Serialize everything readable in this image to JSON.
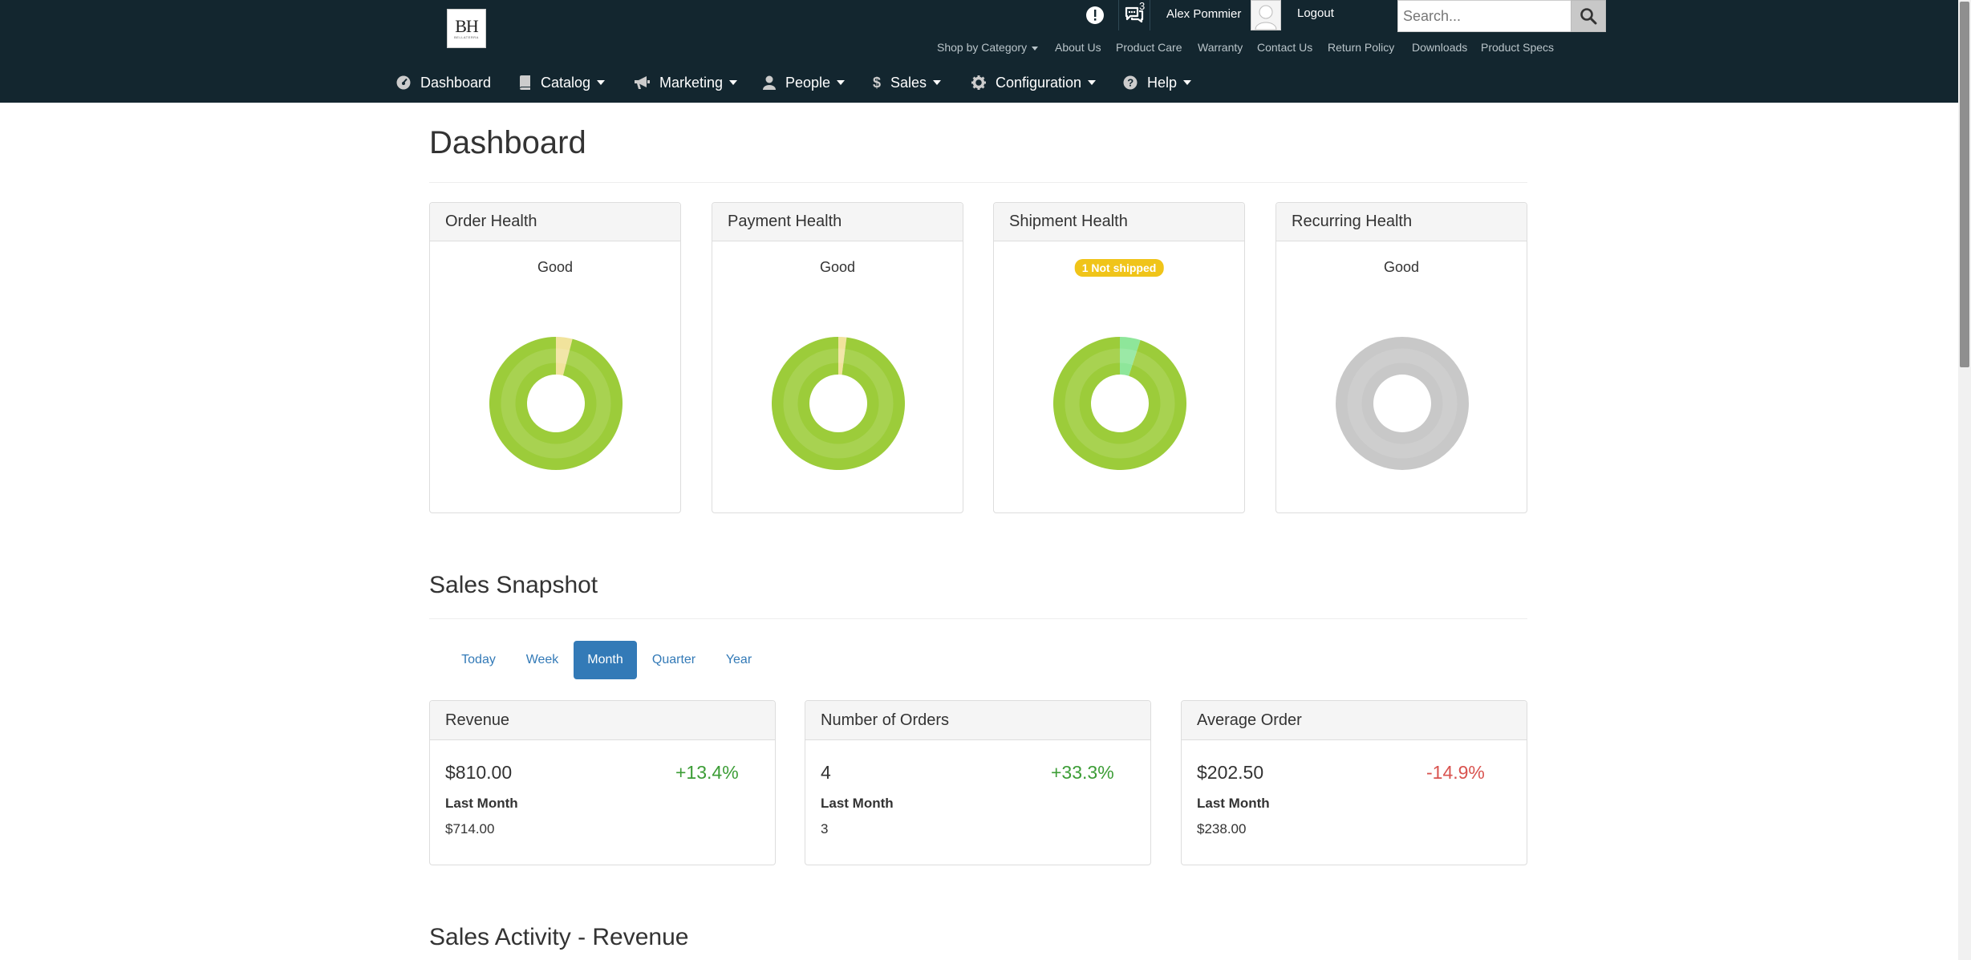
{
  "header": {
    "logo": {
      "monogram": "BH",
      "wordmark": "BELLATERRA"
    },
    "messages_count": "3",
    "user_name": "Alex Pommier",
    "logout_label": "Logout",
    "search_placeholder": "Search..."
  },
  "utility_nav": [
    {
      "label": "Shop by Category"
    },
    {
      "label": "About Us"
    },
    {
      "label": "Product Care"
    },
    {
      "label": "Warranty"
    },
    {
      "label": "Contact Us"
    },
    {
      "label": "Return Policy"
    },
    {
      "label": "Downloads"
    },
    {
      "label": "Product Specs"
    }
  ],
  "main_nav": [
    {
      "label": "Dashboard",
      "icon": "dashboard-icon"
    },
    {
      "label": "Catalog",
      "icon": "book-icon"
    },
    {
      "label": "Marketing",
      "icon": "bullhorn-icon"
    },
    {
      "label": "People",
      "icon": "user-icon"
    },
    {
      "label": "Sales",
      "icon": "dollar-icon"
    },
    {
      "label": "Configuration",
      "icon": "gear-icon"
    },
    {
      "label": "Help",
      "icon": "help-icon"
    }
  ],
  "page": {
    "title": "Dashboard",
    "health_cards": [
      {
        "title": "Order Health",
        "status": "Good",
        "donut": {
          "good_fraction": 0.96,
          "good_color": "#9ccc3a",
          "minor_fraction": 0.04,
          "minor_color": "#f1e39c"
        }
      },
      {
        "title": "Payment Health",
        "status": "Good",
        "donut": {
          "good_fraction": 0.98,
          "good_color": "#9ccc3a",
          "minor_fraction": 0.02,
          "minor_color": "#f1e39c"
        }
      },
      {
        "title": "Shipment Health",
        "badge": "1 Not shipped",
        "donut": {
          "good_fraction": 0.95,
          "good_color": "#9ccc3a",
          "minor_fraction": 0.05,
          "minor_color": "#8ee69a"
        }
      },
      {
        "title": "Recurring Health",
        "status": "Good",
        "donut": {
          "good_fraction": 1.0,
          "good_color": "#c8c8c8",
          "minor_fraction": 0.0,
          "minor_color": "#c8c8c8"
        }
      }
    ],
    "sales_snapshot": {
      "title": "Sales Snapshot",
      "tabs": [
        "Today",
        "Week",
        "Month",
        "Quarter",
        "Year"
      ],
      "active_tab": "Month",
      "stats": [
        {
          "title": "Revenue",
          "value": "$810.00",
          "change": "+13.4%",
          "direction": "up",
          "compare_label": "Last Month",
          "compare_value": "$714.00"
        },
        {
          "title": "Number of Orders",
          "value": "4",
          "change": "+33.3%",
          "direction": "up",
          "compare_label": "Last Month",
          "compare_value": "3"
        },
        {
          "title": "Average Order",
          "value": "$202.50",
          "change": "-14.9%",
          "direction": "down",
          "compare_label": "Last Month",
          "compare_value": "$238.00"
        }
      ]
    },
    "activity_title": "Sales Activity - Revenue"
  },
  "colors": {
    "header_bg": "#13262f",
    "primary": "#337ab7",
    "positive": "#3c9d36",
    "negative": "#d9534f",
    "warning_badge": "#f0c419"
  }
}
